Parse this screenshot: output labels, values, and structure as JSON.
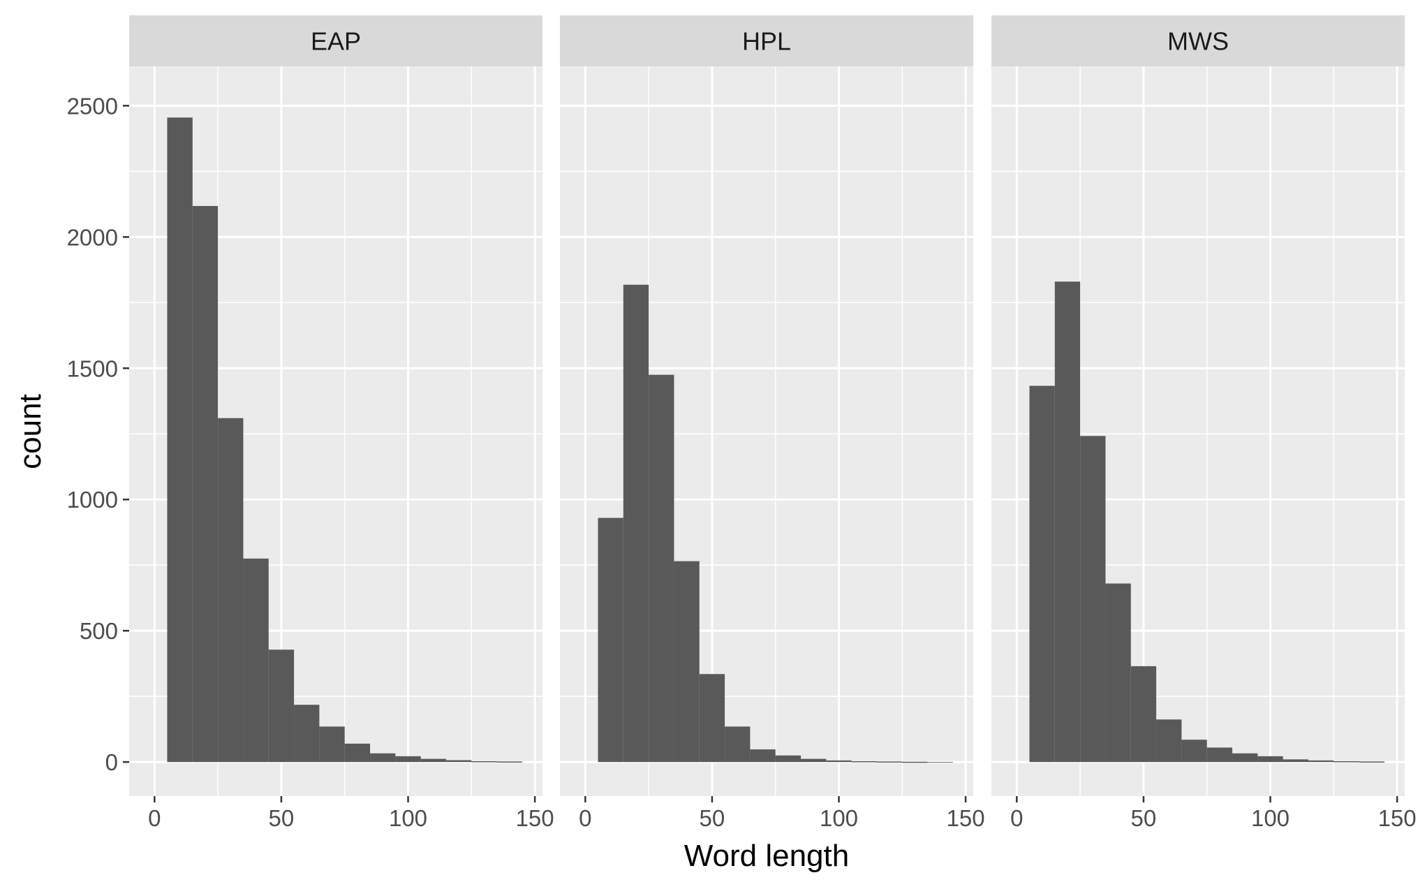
{
  "chart_data": {
    "type": "bar",
    "chart_kind": "faceted histogram",
    "xlabel": "Word length",
    "ylabel": "count",
    "xlim": [
      -10,
      153
    ],
    "ylim": [
      -130,
      2650
    ],
    "x_ticks": [
      0,
      50,
      100,
      150
    ],
    "y_ticks": [
      0,
      500,
      1000,
      1500,
      2000,
      2500
    ],
    "x_minor_ticks": [
      25,
      75,
      125
    ],
    "y_minor_ticks": [
      250,
      750,
      1250,
      1750,
      2250
    ],
    "bin_edges": [
      5,
      15,
      25,
      35,
      45,
      55,
      65,
      75,
      85,
      95,
      105,
      115,
      125,
      135,
      145
    ],
    "grid": true,
    "bar_color": "#595959",
    "panel_background": "#ebebeb",
    "strip_background": "#d9d9d9",
    "gridline_color": "#ffffff",
    "panels": [
      {
        "name": "EAP",
        "counts": [
          2455,
          2118,
          1310,
          775,
          428,
          218,
          135,
          70,
          33,
          22,
          12,
          7,
          3,
          2
        ]
      },
      {
        "name": "HPL",
        "counts": [
          930,
          1818,
          1475,
          765,
          335,
          135,
          48,
          25,
          12,
          6,
          3,
          2,
          1,
          0
        ]
      },
      {
        "name": "MWS",
        "counts": [
          1433,
          1830,
          1242,
          680,
          365,
          162,
          85,
          55,
          33,
          22,
          10,
          6,
          3,
          2
        ]
      }
    ]
  }
}
